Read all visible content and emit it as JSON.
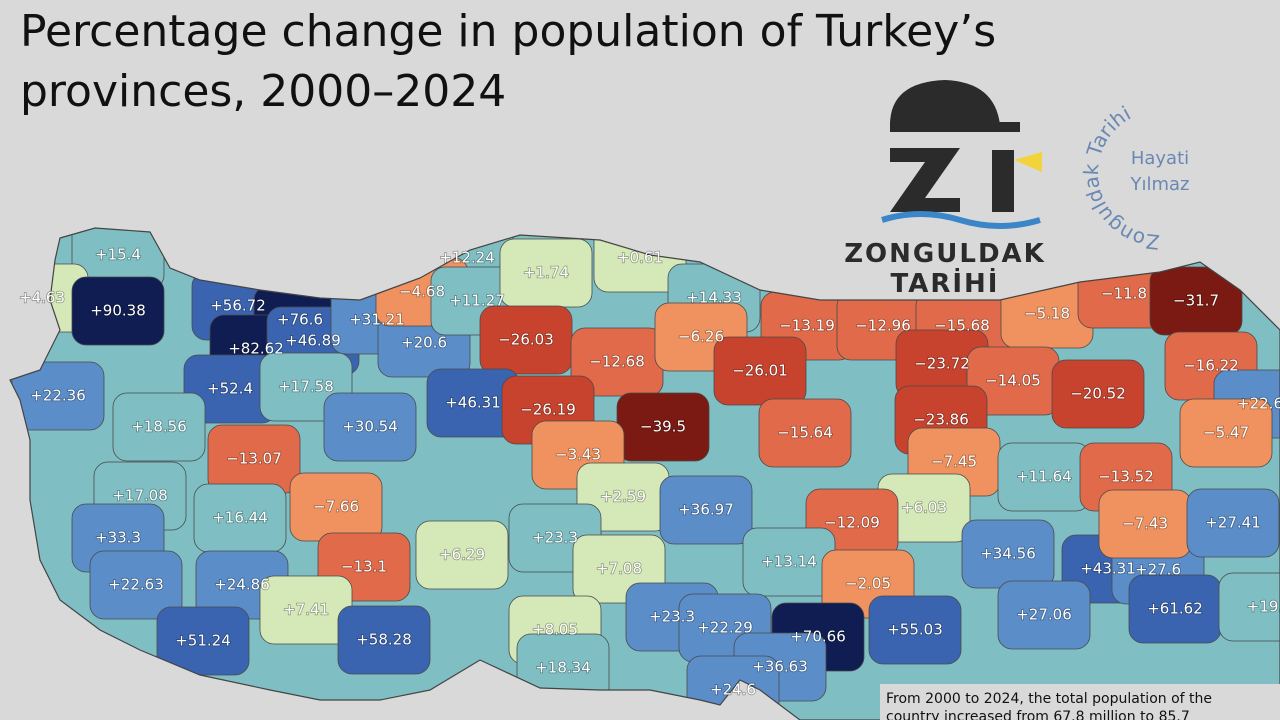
{
  "title_lines": [
    "Percentage change in population of Turkey’s",
    "provinces, 2000–2024"
  ],
  "logo": {
    "name": "ZONGULDAK",
    "subtitle": "TARİHİ"
  },
  "watermark": {
    "ring": "Zonguldak Tarihi",
    "author_lines": [
      "Hayati",
      "Yılmaz"
    ]
  },
  "note_lines": [
    "From 2000 to 2024, the total population of the",
    "country increased from 67.8 million to 85.7"
  ],
  "provinces": [
    {
      "label": "+15.4",
      "color": "#7fbfc4"
    },
    {
      "label": "+4.63",
      "color": "#d4e8b8"
    },
    {
      "label": "+90.38",
      "color": "#0f1d52"
    },
    {
      "label": "+56.72",
      "color": "#3a64b0"
    },
    {
      "label": "+76.6",
      "color": "#0f1d52"
    },
    {
      "label": "+82.62",
      "color": "#0f1d52"
    },
    {
      "label": "+46.89",
      "color": "#3a64b0"
    },
    {
      "label": "+31.21",
      "color": "#5b8dc9"
    },
    {
      "label": "+20.6",
      "color": "#5b8dc9"
    },
    {
      "label": "+12.24",
      "color": "#7fbfc4"
    },
    {
      "label": "−4.68",
      "color": "#f0925f"
    },
    {
      "label": "+11.27",
      "color": "#7fbfc4"
    },
    {
      "label": "+1.74",
      "color": "#d4e8b8"
    },
    {
      "label": "+0.61",
      "color": "#d4e8b8"
    },
    {
      "label": "+14.33",
      "color": "#7fbfc4"
    },
    {
      "label": "+22.36",
      "color": "#5b8dc9"
    },
    {
      "label": "+52.4",
      "color": "#3a64b0"
    },
    {
      "label": "+17.58",
      "color": "#7fbfc4"
    },
    {
      "label": "−26.03",
      "color": "#c8432e"
    },
    {
      "label": "−12.68",
      "color": "#e06a4a"
    },
    {
      "label": "−6.26",
      "color": "#f0925f"
    },
    {
      "label": "−13.19",
      "color": "#e06a4a"
    },
    {
      "label": "−12.96",
      "color": "#e06a4a"
    },
    {
      "label": "−15.68",
      "color": "#e06a4a"
    },
    {
      "label": "−5.18",
      "color": "#f0925f"
    },
    {
      "label": "−11.8",
      "color": "#e06a4a"
    },
    {
      "label": "−31.7",
      "color": "#7a1a12"
    },
    {
      "label": "+18.56",
      "color": "#7fbfc4"
    },
    {
      "label": "+30.54",
      "color": "#5b8dc9"
    },
    {
      "label": "+46.31",
      "color": "#3a64b0"
    },
    {
      "label": "−26.19",
      "color": "#c8432e"
    },
    {
      "label": "−39.5",
      "color": "#7a1a12"
    },
    {
      "label": "−26.01",
      "color": "#c8432e"
    },
    {
      "label": "−15.64",
      "color": "#e06a4a"
    },
    {
      "label": "−23.72",
      "color": "#c8432e"
    },
    {
      "label": "−14.05",
      "color": "#e06a4a"
    },
    {
      "label": "−23.86",
      "color": "#c8432e"
    },
    {
      "label": "−20.52",
      "color": "#c8432e"
    },
    {
      "label": "−16.22",
      "color": "#e06a4a"
    },
    {
      "label": "+22.6",
      "color": "#5b8dc9"
    },
    {
      "label": "−13.07",
      "color": "#e06a4a"
    },
    {
      "label": "−3.43",
      "color": "#f0925f"
    },
    {
      "label": "−5.47",
      "color": "#f0925f"
    },
    {
      "label": "+17.08",
      "color": "#7fbfc4"
    },
    {
      "label": "+16.44",
      "color": "#7fbfc4"
    },
    {
      "label": "−7.66",
      "color": "#f0925f"
    },
    {
      "label": "+2.59",
      "color": "#d4e8b8"
    },
    {
      "label": "+36.97",
      "color": "#5b8dc9"
    },
    {
      "label": "−7.45",
      "color": "#f0925f"
    },
    {
      "label": "+11.64",
      "color": "#7fbfc4"
    },
    {
      "label": "−13.52",
      "color": "#e06a4a"
    },
    {
      "label": "+6.03",
      "color": "#d4e8b8"
    },
    {
      "label": "−12.09",
      "color": "#e06a4a"
    },
    {
      "label": "+33.3",
      "color": "#5b8dc9"
    },
    {
      "label": "+6.29",
      "color": "#d4e8b8"
    },
    {
      "label": "+23.3",
      "color": "#7fbfc4"
    },
    {
      "label": "−13.1",
      "color": "#e06a4a"
    },
    {
      "label": "+7.08",
      "color": "#d4e8b8"
    },
    {
      "label": "+13.14",
      "color": "#7fbfc4"
    },
    {
      "label": "+34.56",
      "color": "#5b8dc9"
    },
    {
      "label": "+43.31",
      "color": "#3a64b0"
    },
    {
      "label": "+27.6",
      "color": "#5b8dc9"
    },
    {
      "label": "−7.43",
      "color": "#f0925f"
    },
    {
      "label": "+27.41",
      "color": "#5b8dc9"
    },
    {
      "label": "+22.63",
      "color": "#5b8dc9"
    },
    {
      "label": "+24.86",
      "color": "#5b8dc9"
    },
    {
      "label": "+7.41",
      "color": "#d4e8b8"
    },
    {
      "label": "−2.05",
      "color": "#f0925f"
    },
    {
      "label": "+23.3",
      "color": "#5b8dc9"
    },
    {
      "label": "+8.05",
      "color": "#d4e8b8"
    },
    {
      "label": "+22.29",
      "color": "#5b8dc9"
    },
    {
      "label": "+70.66",
      "color": "#0f1d52"
    },
    {
      "label": "+55.03",
      "color": "#3a64b0"
    },
    {
      "label": "+27.06",
      "color": "#5b8dc9"
    },
    {
      "label": "+61.62",
      "color": "#3a64b0"
    },
    {
      "label": "+19.",
      "color": "#7fbfc4"
    },
    {
      "label": "+51.24",
      "color": "#3a64b0"
    },
    {
      "label": "+58.28",
      "color": "#3a64b0"
    },
    {
      "label": "+18.34",
      "color": "#7fbfc4"
    },
    {
      "label": "+36.63",
      "color": "#5b8dc9"
    },
    {
      "label": "+24.6",
      "color": "#5b8dc9"
    }
  ]
}
